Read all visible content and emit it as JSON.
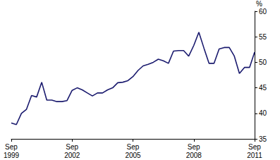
{
  "chart_data": {
    "type": "line",
    "y_label": "%",
    "categories": [
      "Sep\n1999",
      null,
      null,
      null,
      null,
      null,
      null,
      null,
      null,
      null,
      null,
      null,
      "Sep\n2002",
      null,
      null,
      null,
      null,
      null,
      null,
      null,
      null,
      null,
      null,
      null,
      "Sep\n2005",
      null,
      null,
      null,
      null,
      null,
      null,
      null,
      null,
      null,
      null,
      null,
      "Sep\n2008",
      null,
      null,
      null,
      null,
      null,
      null,
      null,
      null,
      null,
      null,
      null,
      "Sep\n2011"
    ],
    "values": [
      38.1,
      37.8,
      40.0,
      40.8,
      43.5,
      43.2,
      46.1,
      42.6,
      42.6,
      42.3,
      42.3,
      42.5,
      44.5,
      45.0,
      44.6,
      44.0,
      43.4,
      44.0,
      44.0,
      44.6,
      45.0,
      46.0,
      46.1,
      46.4,
      47.2,
      48.4,
      49.3,
      49.6,
      50.0,
      50.6,
      50.3,
      49.8,
      52.2,
      52.3,
      52.3,
      51.2,
      53.3,
      55.9,
      52.8,
      49.8,
      49.8,
      52.6,
      52.9,
      52.9,
      51.2,
      47.8,
      49.0,
      49.0,
      52.0
    ],
    "color": "#1a1a6e",
    "ylim": [
      35,
      60
    ],
    "yticks": [
      35,
      40,
      45,
      50,
      55,
      60
    ],
    "grid": false
  }
}
